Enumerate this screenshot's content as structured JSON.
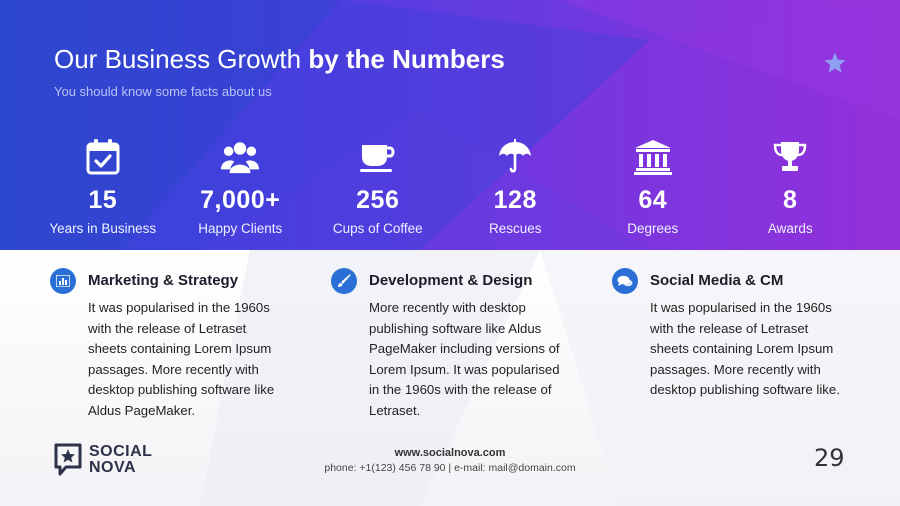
{
  "header": {
    "title_light": "Our Business Growth",
    "title_bold": "by the Numbers",
    "subtitle": "You should know some facts about us"
  },
  "decor": {
    "star_icon": "star-icon"
  },
  "stats": [
    {
      "icon": "calendar-check-icon",
      "value": "15",
      "label": "Years in Business"
    },
    {
      "icon": "users-group-icon",
      "value": "7,000+",
      "label": "Happy Clients"
    },
    {
      "icon": "coffee-cup-icon",
      "value": "256",
      "label": "Cups of Coffee"
    },
    {
      "icon": "umbrella-icon",
      "value": "128",
      "label": "Rescues"
    },
    {
      "icon": "university-icon",
      "value": "64",
      "label": "Degrees"
    },
    {
      "icon": "trophy-icon",
      "value": "8",
      "label": "Awards"
    }
  ],
  "services": [
    {
      "icon": "bar-chart-icon",
      "title": "Marketing & Strategy",
      "text": "It was popularised in the 1960s with the release of Letraset sheets containing Lorem Ipsum passages. More recently with desktop publishing software like Aldus PageMaker."
    },
    {
      "icon": "paintbrush-icon",
      "title": "Development & Design",
      "text": "More recently with desktop publishing software like Aldus PageMaker including versions of Lorem Ipsum. It was popularised in the 1960s with the release of Letraset."
    },
    {
      "icon": "chat-bubbles-icon",
      "title": "Social Media & CM",
      "text": "It was popularised in the 1960s with the release of Letraset sheets containing Lorem Ipsum passages. More recently with desktop publishing software like."
    }
  ],
  "footer": {
    "logo_line1": "SOCIAL",
    "logo_line2": "NOVA",
    "website": "www.socialnova.com",
    "contact_line": "phone: +1(123) 456 78 90 | e-mail: mail@domain.com",
    "page_number": "29"
  },
  "colors": {
    "hero_start": "#2f4bd6",
    "hero_end": "#9a30d8",
    "badge": "#2a6fd6",
    "star": "#8fa0f2"
  }
}
